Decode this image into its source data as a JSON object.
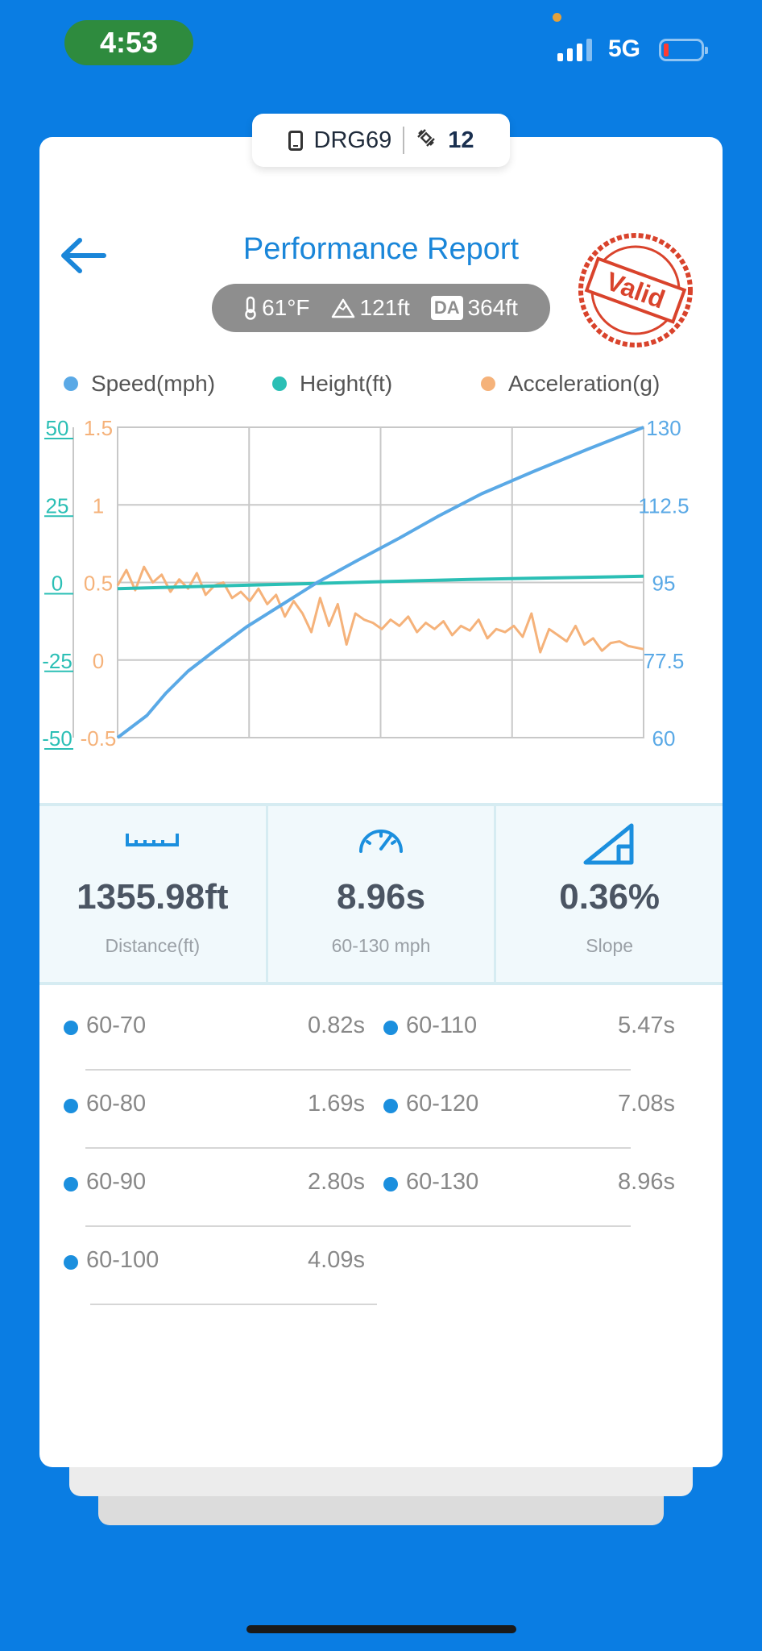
{
  "status_bar": {
    "time": "4:53",
    "network": "5G"
  },
  "device": {
    "name": "DRG69",
    "satellites": "12"
  },
  "header": {
    "title": "Performance Report",
    "stamp_text": "Valid"
  },
  "conditions": {
    "temperature": "61°F",
    "altitude": "121ft",
    "da_label": "DA",
    "density_altitude": "364ft"
  },
  "legend": [
    {
      "label": "Speed(mph)",
      "color": "#5aa9e6"
    },
    {
      "label": "Height(ft)",
      "color": "#2bbfb5"
    },
    {
      "label": "Acceleration(g)",
      "color": "#f5b27a"
    }
  ],
  "chart_data": {
    "type": "line",
    "axes": {
      "height_left": {
        "ticks": [
          "50",
          "25",
          "0",
          "-25",
          "-50"
        ],
        "range": [
          -50,
          50
        ],
        "color": "#2bbfb5"
      },
      "accel_left": {
        "ticks": [
          "1.5",
          "1",
          "0.5",
          "0",
          "-0.5"
        ],
        "range": [
          -0.5,
          1.5
        ],
        "color": "#f5b27a"
      },
      "speed_right": {
        "ticks": [
          "130",
          "112.5",
          "95",
          "77.5",
          "60"
        ],
        "range": [
          60,
          130
        ],
        "color": "#5aa9e6"
      }
    },
    "grid": true,
    "x_range": [
      0,
      8.96
    ],
    "series": [
      {
        "name": "Speed(mph)",
        "axis": "speed_right",
        "color": "#5aa9e6",
        "x": [
          0,
          0.5,
          0.82,
          1.2,
          1.69,
          2.2,
          2.8,
          3.4,
          4.09,
          4.8,
          5.47,
          6.2,
          7.08,
          8.0,
          8.96
        ],
        "y": [
          60,
          65,
          70,
          75,
          80,
          85,
          90,
          95,
          100,
          105,
          110,
          115,
          120,
          125,
          130
        ]
      },
      {
        "name": "Height(ft)",
        "axis": "height_left",
        "color": "#2bbfb5",
        "x": [
          0,
          2.0,
          4.0,
          6.0,
          8.96
        ],
        "y": [
          -2,
          -1,
          0,
          1,
          2
        ]
      },
      {
        "name": "Acceleration(g)",
        "axis": "accel_left",
        "color": "#f5b27a",
        "x": [
          0,
          0.15,
          0.3,
          0.45,
          0.6,
          0.75,
          0.9,
          1.05,
          1.2,
          1.35,
          1.5,
          1.65,
          1.8,
          1.95,
          2.1,
          2.25,
          2.4,
          2.55,
          2.7,
          2.85,
          3.0,
          3.15,
          3.3,
          3.45,
          3.6,
          3.75,
          3.9,
          4.05,
          4.2,
          4.35,
          4.5,
          4.65,
          4.8,
          4.95,
          5.1,
          5.25,
          5.4,
          5.55,
          5.7,
          5.85,
          6.0,
          6.15,
          6.3,
          6.45,
          6.6,
          6.75,
          6.9,
          7.05,
          7.2,
          7.35,
          7.5,
          7.65,
          7.8,
          7.95,
          8.1,
          8.25,
          8.4,
          8.55,
          8.7,
          8.96
        ],
        "y": [
          0.48,
          0.58,
          0.45,
          0.6,
          0.5,
          0.55,
          0.44,
          0.52,
          0.46,
          0.56,
          0.42,
          0.48,
          0.5,
          0.4,
          0.44,
          0.38,
          0.46,
          0.36,
          0.42,
          0.28,
          0.38,
          0.3,
          0.18,
          0.4,
          0.22,
          0.36,
          0.1,
          0.3,
          0.26,
          0.24,
          0.2,
          0.26,
          0.22,
          0.28,
          0.18,
          0.24,
          0.2,
          0.25,
          0.16,
          0.22,
          0.19,
          0.26,
          0.14,
          0.2,
          0.18,
          0.22,
          0.15,
          0.3,
          0.05,
          0.2,
          0.16,
          0.12,
          0.22,
          0.1,
          0.14,
          0.06,
          0.11,
          0.12,
          0.09,
          0.07
        ]
      }
    ]
  },
  "stats": [
    {
      "value": "1355.98ft",
      "label": "Distance(ft)",
      "icon": "ruler-icon"
    },
    {
      "value": "8.96s",
      "label": "60-130 mph",
      "icon": "speedometer-icon"
    },
    {
      "value": "0.36%",
      "label": "Slope",
      "icon": "slope-icon"
    }
  ],
  "splits": [
    {
      "label": "60-70",
      "value": "0.82s"
    },
    {
      "label": "60-80",
      "value": "1.69s"
    },
    {
      "label": "60-90",
      "value": "2.80s"
    },
    {
      "label": "60-100",
      "value": "4.09s"
    },
    {
      "label": "60-110",
      "value": "5.47s"
    },
    {
      "label": "60-120",
      "value": "7.08s"
    },
    {
      "label": "60-130",
      "value": "8.96s"
    }
  ]
}
